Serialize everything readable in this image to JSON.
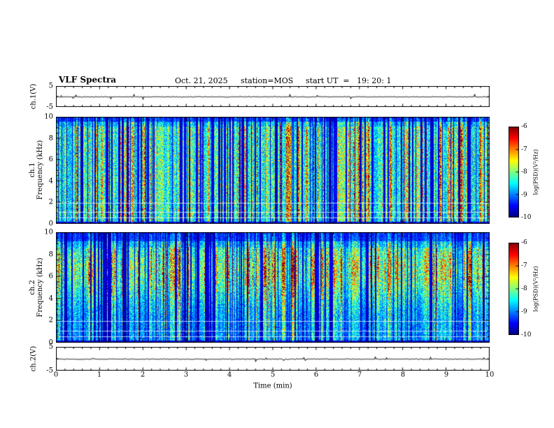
{
  "header": {
    "title": "VLF Spectra",
    "date": "Oct. 21, 2025",
    "station": "station=MOS",
    "start_ut": "start UT  =   19: 20: 1"
  },
  "panels": {
    "ch1_wave": {
      "ylabel": "ch.1(V)"
    },
    "ch1_spec": {
      "channel": "ch.1",
      "ylabel": "Frequency (kHz)"
    },
    "ch2_spec": {
      "channel": "ch.2",
      "ylabel": "Frequency (kHz)"
    },
    "ch2_wave": {
      "ylabel": "ch.2(V)"
    }
  },
  "axes": {
    "x": {
      "label": "Time (min)",
      "ticks": [
        "0",
        "1",
        "2",
        "3",
        "4",
        "5",
        "6",
        "7",
        "8",
        "9",
        "10"
      ]
    },
    "spec_y_ticks": [
      "10",
      "8",
      "6",
      "4",
      "2",
      "0"
    ],
    "wave_y_ticks": {
      "top": "5",
      "bottom": "-5"
    },
    "colorbar": {
      "label": "log(PSD)(V²/Hz)",
      "ticks": [
        "-6",
        "-7",
        "-8",
        "-9",
        "-10"
      ]
    }
  },
  "chart_data": [
    {
      "type": "line",
      "name": "ch1_voltage_trace",
      "ylabel": "ch.1(V)",
      "xlim": [
        0,
        10
      ],
      "ylim": [
        -5,
        5
      ],
      "x": [
        0,
        10
      ],
      "values": [
        0,
        0
      ],
      "note": "near-flat trace at ~0 V across the full 10 min record",
      "noise_seed": 5
    },
    {
      "type": "heatmap",
      "name": "ch1_spectrogram",
      "xlabel": "Time (min)",
      "ylabel": "Frequency (kHz)",
      "zlabel": "log(PSD)(V²/Hz)",
      "xlim": [
        0,
        10
      ],
      "ylim": [
        0,
        10
      ],
      "zlim": [
        -10,
        -6
      ],
      "colormap": "jet",
      "legend_position": "right colorbar",
      "pattern": "dense broadband impulsive vertical stripes (sferic-like bursts) spanning 0-10 kHz; background level ~ -10, stripe cores -7.5 to -6; darker band above ~9.5 kHz",
      "horizontal_lines_khz": [
        0.55,
        1.05,
        1.9
      ],
      "noise_seed": 11
    },
    {
      "type": "heatmap",
      "name": "ch2_spectrogram",
      "xlabel": "Time (min)",
      "ylabel": "Frequency (kHz)",
      "zlabel": "log(PSD)(V²/Hz)",
      "xlim": [
        0,
        10
      ],
      "ylim": [
        0,
        10
      ],
      "zlim": [
        -10,
        -6
      ],
      "colormap": "jet",
      "legend_position": "right colorbar",
      "pattern": "broadband impulsive stripes with enhanced intensity band near 5-8 kHz (green-yellow with red spots); weaker above 9 kHz",
      "horizontal_lines_khz": [
        0.5,
        1.0,
        1.9
      ],
      "noise_seed": 77
    },
    {
      "type": "line",
      "name": "ch2_voltage_trace",
      "ylabel": "ch.2(V)",
      "xlim": [
        0,
        10
      ],
      "ylim": [
        -5,
        5
      ],
      "x": [
        0,
        10
      ],
      "values": [
        0,
        0
      ],
      "note": "near-flat trace at ~0 V across the full 10 min record",
      "noise_seed": 9
    }
  ]
}
